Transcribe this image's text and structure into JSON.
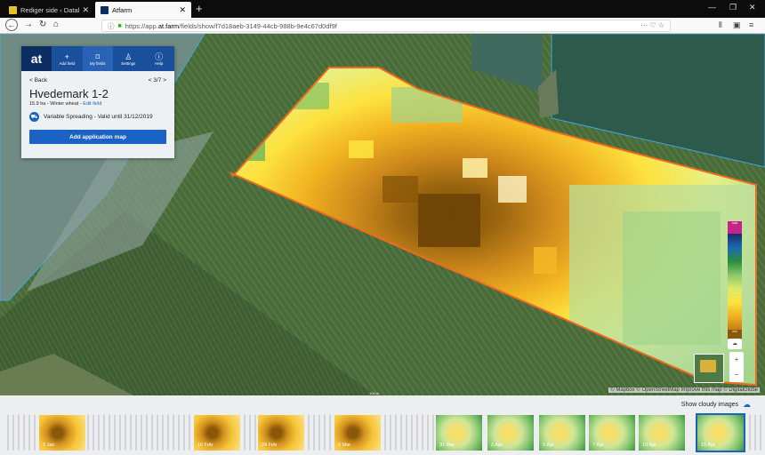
{
  "browser": {
    "tabs": [
      {
        "title": "Rediger side ‹ Datalogisk A/S — ",
        "active": false
      },
      {
        "title": "Atfarm",
        "active": true
      }
    ],
    "url_prefix": "https://app.",
    "url_domain": "at.farm",
    "url_path": "/fields/show/f7d18aeb-3149-44cb-988b-9e4c67d0df9f"
  },
  "app": {
    "logo": "at",
    "nav": [
      {
        "label": "Add field",
        "icon": "plus-icon"
      },
      {
        "label": "My fields",
        "icon": "field-shape-icon"
      },
      {
        "label": "Settings",
        "icon": "user-icon"
      },
      {
        "label": "Help",
        "icon": "help-icon"
      }
    ],
    "back_label": "< Back",
    "pager": "< 3/7 >",
    "field_name": "Hvedemark 1-2",
    "field_info": "15.9 ha - Winter wheat - ",
    "edit_link": "Edit field",
    "variable_spreading": "Variable Spreading - Valid until 31/12/2019",
    "add_button": "Add application map"
  },
  "map": {
    "legend_max": "max",
    "legend_min": "min",
    "mapbox": "mapbox",
    "attribution": "© Mapbox © OpenStreetMap Improve this map © DigitalGlobe",
    "scale": "100 m"
  },
  "timeline": {
    "cloudy_label": "Show cloudy images",
    "thumbs": [
      {
        "date": "2 Jan",
        "tone": "a"
      },
      {
        "date": "16 Feb",
        "tone": "a"
      },
      {
        "date": "24 Feb",
        "tone": "a"
      },
      {
        "date": "9 Mar",
        "tone": "a"
      },
      {
        "date": "31 Mar",
        "tone": "b"
      },
      {
        "date": "2 Apr",
        "tone": "b"
      },
      {
        "date": "5 Apr",
        "tone": "b"
      },
      {
        "date": "7 Apr",
        "tone": "b"
      },
      {
        "date": "10 Apr",
        "tone": "b"
      },
      {
        "date": "15 Apr",
        "tone": "b",
        "selected": true
      }
    ]
  },
  "colors": {
    "brand": "#1a4f9c",
    "button": "#1a62c4",
    "field_outline": "#f06a1e"
  }
}
